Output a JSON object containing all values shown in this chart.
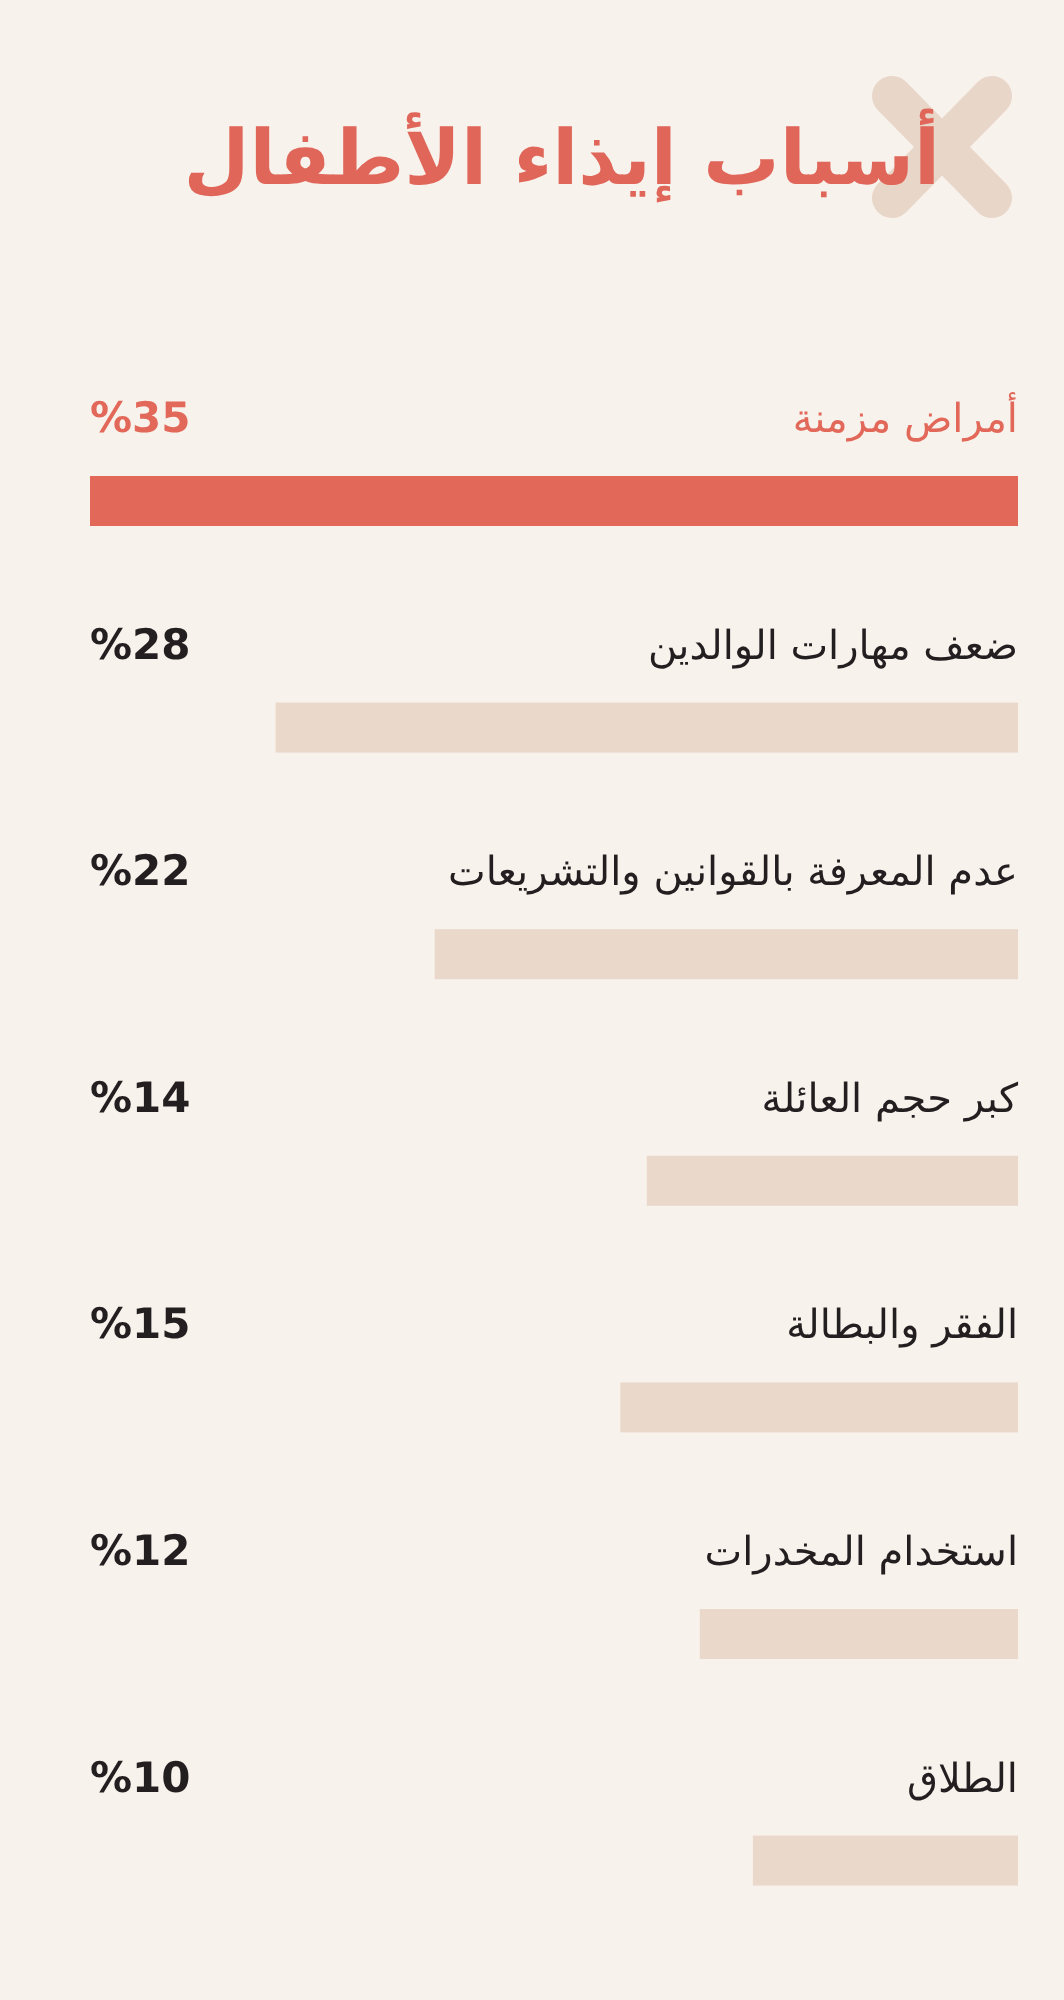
{
  "chart_data": {
    "type": "bar",
    "orientation": "horizontal",
    "title": "أسباب إيذاء الأطفال",
    "categories": [
      "أمراض مزمنة",
      "ضعف مهارات الوالدين",
      "عدم المعرفة بالقوانين والتشريعات",
      "كبر حجم العائلة",
      "الفقر والبطالة",
      "استخدام المخدرات",
      "الطلاق"
    ],
    "values": [
      35,
      28,
      22,
      14,
      15,
      12,
      10
    ],
    "colors": [
      "#e2685a",
      "#ead8ca",
      "#ead8ca",
      "#ead8ca",
      "#ead8ca",
      "#ead8ca",
      "#ead8ca"
    ],
    "value_labels": [
      "%35",
      "%28",
      "%22",
      "%14",
      "%15",
      "%12",
      "%10"
    ]
  }
}
